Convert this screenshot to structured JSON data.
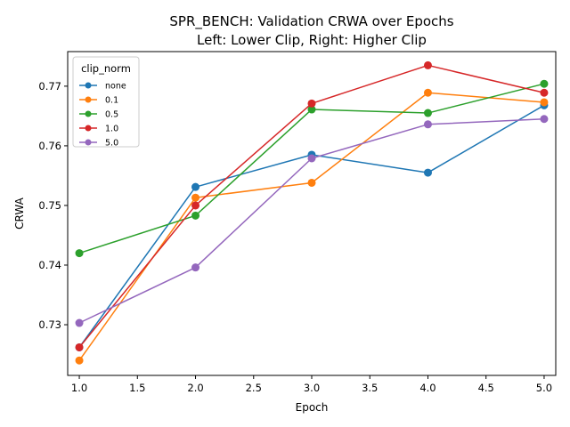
{
  "chart_data": {
    "type": "line",
    "title_lines": [
      "SPR_BENCH: Validation CRWA over Epochs",
      "Left: Lower Clip, Right: Higher Clip"
    ],
    "xlabel": "Epoch",
    "ylabel": "CRWA",
    "xlim": [
      0.9,
      5.1
    ],
    "ylim": [
      0.7215,
      0.7758
    ],
    "x_ticks": [
      1.0,
      1.5,
      2.0,
      2.5,
      3.0,
      3.5,
      4.0,
      4.5,
      5.0
    ],
    "x_tick_labels": [
      "1.0",
      "1.5",
      "2.0",
      "2.5",
      "3.0",
      "3.5",
      "4.0",
      "4.5",
      "5.0"
    ],
    "y_ticks": [
      0.73,
      0.74,
      0.75,
      0.76,
      0.77
    ],
    "y_tick_labels": [
      "0.73",
      "0.74",
      "0.75",
      "0.76",
      "0.77"
    ],
    "grid": false,
    "legend": {
      "title": "clip_norm",
      "placement": "top-left"
    },
    "x": [
      1,
      2,
      3,
      4,
      5
    ],
    "series": [
      {
        "name": "none",
        "color": "#1f77b4",
        "values": [
          0.7262,
          0.7531,
          0.7585,
          0.7555,
          0.7668
        ]
      },
      {
        "name": "0.1",
        "color": "#ff7f0e",
        "values": [
          0.724,
          0.7513,
          0.7538,
          0.7689,
          0.7673
        ]
      },
      {
        "name": "0.5",
        "color": "#2ca02c",
        "values": [
          0.742,
          0.7483,
          0.7661,
          0.7655,
          0.7704
        ]
      },
      {
        "name": "1.0",
        "color": "#d62728",
        "values": [
          0.7262,
          0.75,
          0.7671,
          0.7735,
          0.7689
        ]
      },
      {
        "name": "5.0",
        "color": "#9467bd",
        "values": [
          0.7303,
          0.7396,
          0.7579,
          0.7636,
          0.7645
        ]
      }
    ]
  }
}
